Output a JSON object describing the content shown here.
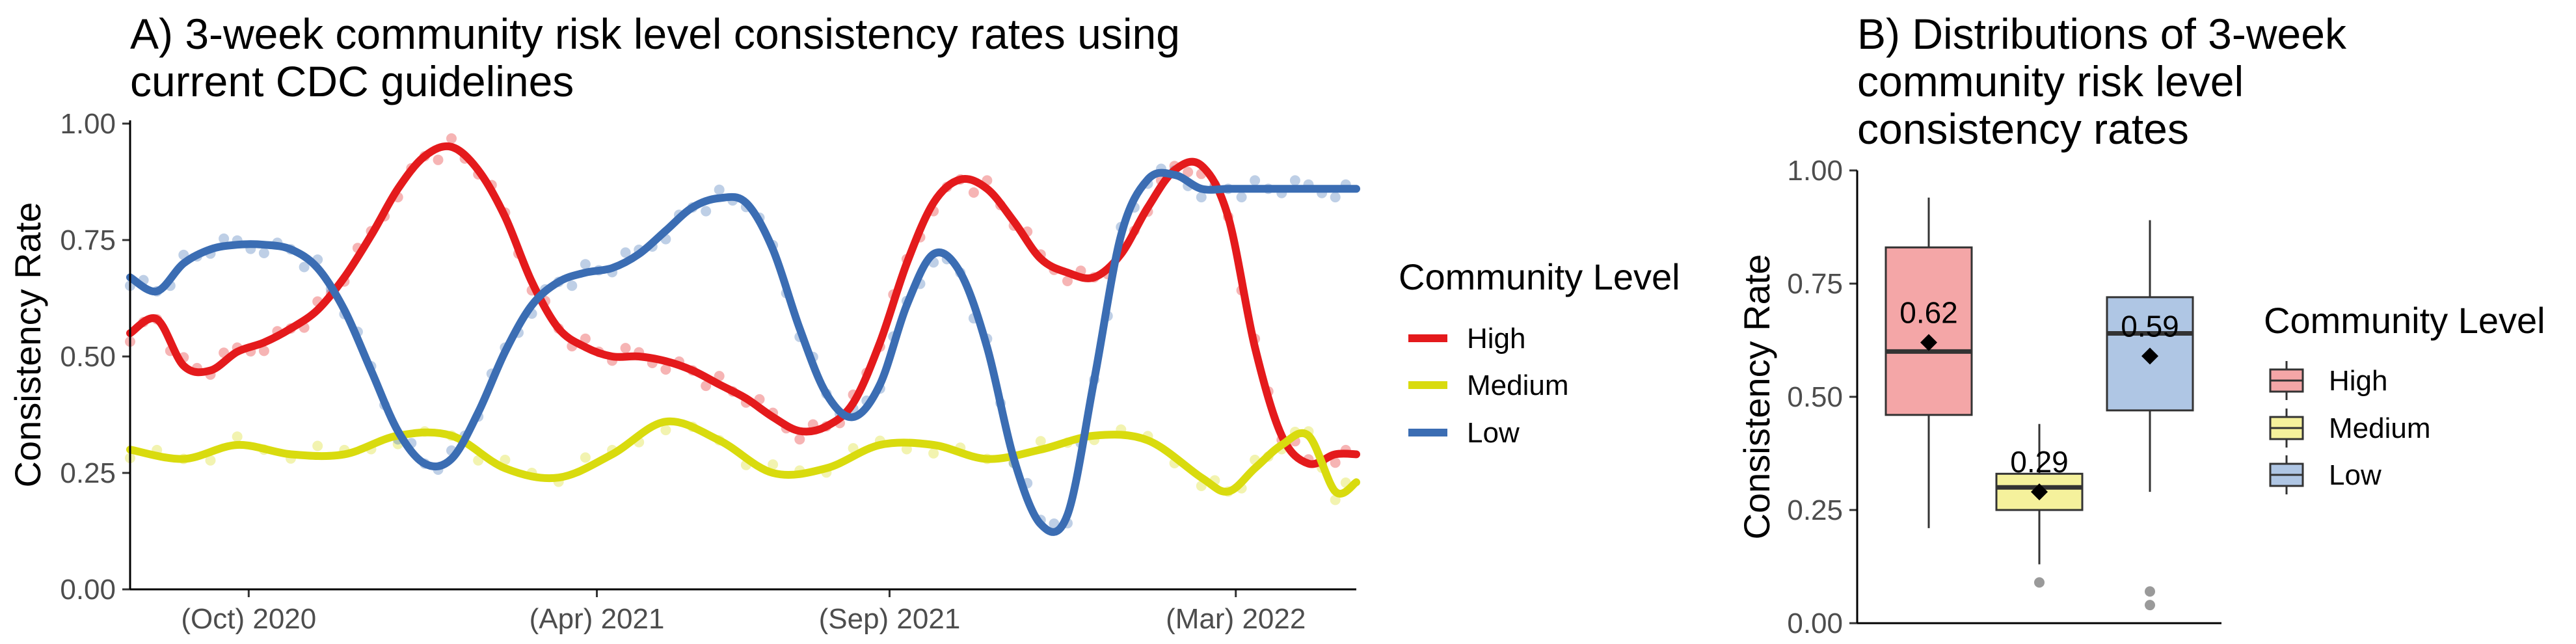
{
  "chart_data": [
    {
      "type": "line",
      "title_lines": [
        "A) 3-week community risk level consistency rates using",
        "current CDC guidelines"
      ],
      "ylabel": "Consistency Rate",
      "xlabel": "",
      "ylim": [
        0,
        1
      ],
      "yticks": [
        0,
        0.25,
        0.5,
        0.75,
        1
      ],
      "ytick_labels": [
        "0.00",
        "0.25",
        "0.50",
        "0.75",
        "1.00"
      ],
      "xlim": [
        "2020-07-31",
        "2022-05-03"
      ],
      "xticks": [
        "2020-10-01",
        "2021-04-01",
        "2021-09-01",
        "2022-03-01"
      ],
      "xtick_labels": [
        "(Oct) 2020",
        "(Apr) 2021",
        "(Sep) 2021",
        "(Mar) 2022"
      ],
      "grid": false,
      "legend": {
        "title": "Community Level",
        "position": "right",
        "entries": [
          "High",
          "Medium",
          "Low"
        ]
      },
      "series": [
        {
          "name": "High",
          "color": "#E41A1C",
          "x": [
            "2020-07-31",
            "2020-08-14",
            "2020-08-28",
            "2020-09-11",
            "2020-09-25",
            "2020-10-09",
            "2020-10-23",
            "2020-11-06",
            "2020-11-20",
            "2020-12-04",
            "2020-12-18",
            "2021-01-01",
            "2021-01-15",
            "2021-01-29",
            "2021-02-12",
            "2021-02-26",
            "2021-03-12",
            "2021-03-26",
            "2021-04-09",
            "2021-04-23",
            "2021-05-07",
            "2021-05-21",
            "2021-06-04",
            "2021-06-18",
            "2021-07-02",
            "2021-07-16",
            "2021-07-30",
            "2021-08-13",
            "2021-08-27",
            "2021-09-10",
            "2021-09-24",
            "2021-10-08",
            "2021-10-22",
            "2021-11-05",
            "2021-11-19",
            "2021-12-03",
            "2021-12-17",
            "2021-12-31",
            "2022-01-14",
            "2022-01-28",
            "2022-02-11",
            "2022-02-25",
            "2022-03-11",
            "2022-03-25",
            "2022-04-08",
            "2022-04-22",
            "2022-05-03"
          ],
          "y": [
            0.55,
            0.58,
            0.48,
            0.47,
            0.51,
            0.53,
            0.56,
            0.6,
            0.67,
            0.76,
            0.86,
            0.93,
            0.95,
            0.9,
            0.8,
            0.66,
            0.56,
            0.52,
            0.5,
            0.5,
            0.49,
            0.47,
            0.44,
            0.41,
            0.37,
            0.34,
            0.35,
            0.4,
            0.53,
            0.7,
            0.83,
            0.88,
            0.86,
            0.79,
            0.71,
            0.68,
            0.67,
            0.72,
            0.82,
            0.9,
            0.91,
            0.8,
            0.52,
            0.33,
            0.27,
            0.29,
            0.29
          ]
        },
        {
          "name": "Medium",
          "color": "#D9DB0E",
          "x": [
            "2020-07-31",
            "2020-08-28",
            "2020-09-25",
            "2020-10-23",
            "2020-11-20",
            "2020-12-18",
            "2021-01-15",
            "2021-02-12",
            "2021-03-12",
            "2021-04-09",
            "2021-05-07",
            "2021-06-04",
            "2021-07-02",
            "2021-07-30",
            "2021-08-27",
            "2021-09-24",
            "2021-10-22",
            "2021-11-19",
            "2021-12-17",
            "2022-01-14",
            "2022-02-11",
            "2022-02-25",
            "2022-03-11",
            "2022-03-25",
            "2022-04-08",
            "2022-04-22",
            "2022-05-03"
          ],
          "y": [
            0.3,
            0.28,
            0.31,
            0.29,
            0.29,
            0.33,
            0.33,
            0.26,
            0.24,
            0.29,
            0.36,
            0.32,
            0.25,
            0.26,
            0.31,
            0.31,
            0.28,
            0.3,
            0.33,
            0.32,
            0.24,
            0.21,
            0.26,
            0.31,
            0.33,
            0.21,
            0.23
          ]
        },
        {
          "name": "Low",
          "color": "#3B6DB3",
          "x": [
            "2020-07-31",
            "2020-08-14",
            "2020-08-28",
            "2020-09-11",
            "2020-09-25",
            "2020-10-09",
            "2020-10-23",
            "2020-11-06",
            "2020-11-20",
            "2020-12-04",
            "2020-12-18",
            "2021-01-01",
            "2021-01-15",
            "2021-01-29",
            "2021-02-12",
            "2021-02-26",
            "2021-03-12",
            "2021-03-26",
            "2021-04-09",
            "2021-04-23",
            "2021-05-07",
            "2021-05-21",
            "2021-06-04",
            "2021-06-18",
            "2021-07-02",
            "2021-07-16",
            "2021-07-30",
            "2021-08-13",
            "2021-08-27",
            "2021-09-10",
            "2021-09-24",
            "2021-10-08",
            "2021-10-22",
            "2021-11-05",
            "2021-11-19",
            "2021-12-03",
            "2021-12-17",
            "2021-12-31",
            "2022-01-14",
            "2022-01-28",
            "2022-02-11",
            "2022-02-25",
            "2022-03-11",
            "2022-03-25",
            "2022-04-08",
            "2022-04-22",
            "2022-05-03"
          ],
          "y": [
            0.67,
            0.64,
            0.7,
            0.73,
            0.74,
            0.74,
            0.73,
            0.69,
            0.6,
            0.47,
            0.34,
            0.27,
            0.28,
            0.38,
            0.51,
            0.61,
            0.66,
            0.68,
            0.69,
            0.72,
            0.77,
            0.82,
            0.84,
            0.83,
            0.73,
            0.56,
            0.42,
            0.37,
            0.44,
            0.61,
            0.72,
            0.68,
            0.52,
            0.28,
            0.14,
            0.16,
            0.45,
            0.76,
            0.88,
            0.89,
            0.86,
            0.86,
            0.86,
            0.86,
            0.86,
            0.86,
            0.86
          ]
        }
      ]
    },
    {
      "type": "box",
      "title_lines": [
        "B) Distributions of 3-week",
        "community risk level",
        "consistency rates"
      ],
      "ylabel": "Consistency Rate",
      "xlabel": "",
      "ylim": [
        0,
        1
      ],
      "yticks": [
        0,
        0.25,
        0.5,
        0.75,
        1
      ],
      "ytick_labels": [
        "0.00",
        "0.25",
        "0.50",
        "0.75",
        "1.00"
      ],
      "grid": false,
      "legend": {
        "title": "Community Level",
        "position": "right",
        "entries": [
          "High",
          "Medium",
          "Low"
        ]
      },
      "boxes": [
        {
          "name": "High",
          "fill": "#F4A6A7",
          "min": 0.21,
          "q1": 0.46,
          "median": 0.6,
          "q3": 0.83,
          "max": 0.94,
          "mean": 0.62,
          "mean_label": "0.62",
          "outliers": []
        },
        {
          "name": "Medium",
          "fill": "#F5F19C",
          "min": 0.13,
          "q1": 0.25,
          "median": 0.3,
          "q3": 0.33,
          "max": 0.44,
          "mean": 0.29,
          "mean_label": "0.29",
          "outliers": [
            0.09
          ]
        },
        {
          "name": "Low",
          "fill": "#AFC6E4",
          "min": 0.29,
          "q1": 0.47,
          "median": 0.64,
          "q3": 0.72,
          "max": 0.89,
          "mean": 0.59,
          "mean_label": "0.59",
          "outliers": [
            0.04,
            0.07
          ]
        }
      ]
    }
  ]
}
